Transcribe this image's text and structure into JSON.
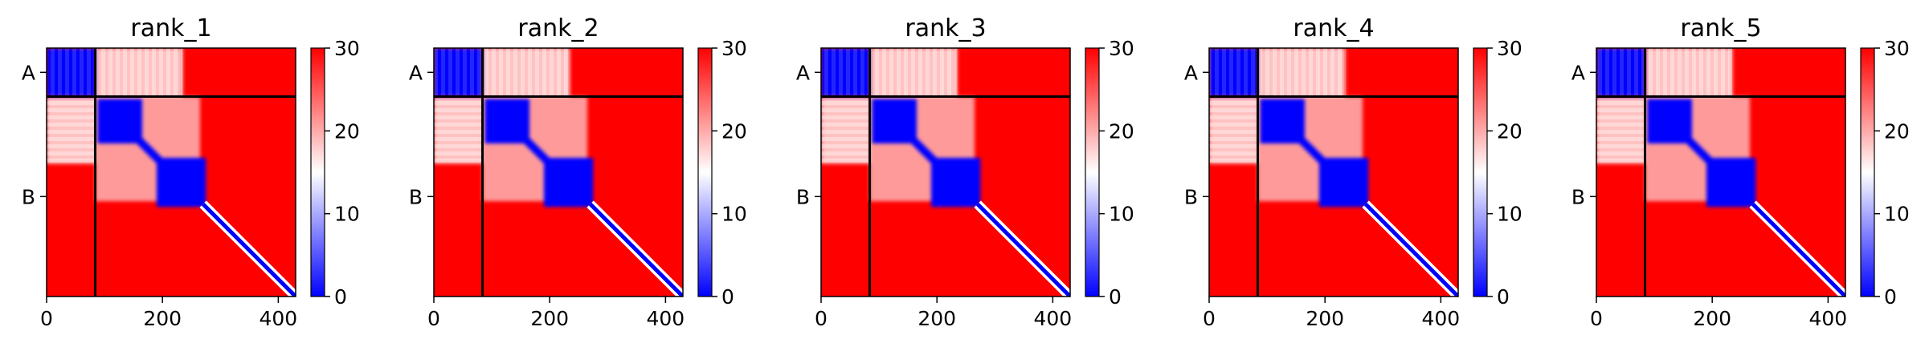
{
  "chart_data": [
    {
      "type": "heatmap",
      "title": "rank_1",
      "xticks": [
        0,
        200,
        400
      ],
      "chain_labels": [
        "A",
        "B"
      ],
      "chain_boundary": 84,
      "length": 430,
      "colorbar_ticks": [
        0,
        10,
        20,
        30
      ],
      "colorbar_range": [
        0,
        30
      ],
      "colormap": "bwr",
      "colors": {
        "low": "#0000ff",
        "mid": "#ffffff",
        "high": "#ff0000"
      }
    },
    {
      "type": "heatmap",
      "title": "rank_2",
      "xticks": [
        0,
        200,
        400
      ],
      "chain_labels": [
        "A",
        "B"
      ],
      "chain_boundary": 84,
      "length": 430,
      "colorbar_ticks": [
        0,
        10,
        20,
        30
      ],
      "colorbar_range": [
        0,
        30
      ],
      "colormap": "bwr",
      "colors": {
        "low": "#0000ff",
        "mid": "#ffffff",
        "high": "#ff0000"
      }
    },
    {
      "type": "heatmap",
      "title": "rank_3",
      "xticks": [
        0,
        200,
        400
      ],
      "chain_labels": [
        "A",
        "B"
      ],
      "chain_boundary": 84,
      "length": 430,
      "colorbar_ticks": [
        0,
        10,
        20,
        30
      ],
      "colorbar_range": [
        0,
        30
      ],
      "colormap": "bwr",
      "colors": {
        "low": "#0000ff",
        "mid": "#ffffff",
        "high": "#ff0000"
      }
    },
    {
      "type": "heatmap",
      "title": "rank_4",
      "xticks": [
        0,
        200,
        400
      ],
      "chain_labels": [
        "A",
        "B"
      ],
      "chain_boundary": 84,
      "length": 430,
      "colorbar_ticks": [
        0,
        10,
        20,
        30
      ],
      "colorbar_range": [
        0,
        30
      ],
      "colormap": "bwr",
      "colors": {
        "low": "#0000ff",
        "mid": "#ffffff",
        "high": "#ff0000"
      }
    },
    {
      "type": "heatmap",
      "title": "rank_5",
      "xticks": [
        0,
        200,
        400
      ],
      "chain_labels": [
        "A",
        "B"
      ],
      "chain_boundary": 84,
      "length": 430,
      "colorbar_ticks": [
        0,
        10,
        20,
        30
      ],
      "colorbar_range": [
        0,
        30
      ],
      "colormap": "bwr",
      "colors": {
        "low": "#0000ff",
        "mid": "#ffffff",
        "high": "#ff0000"
      }
    }
  ]
}
